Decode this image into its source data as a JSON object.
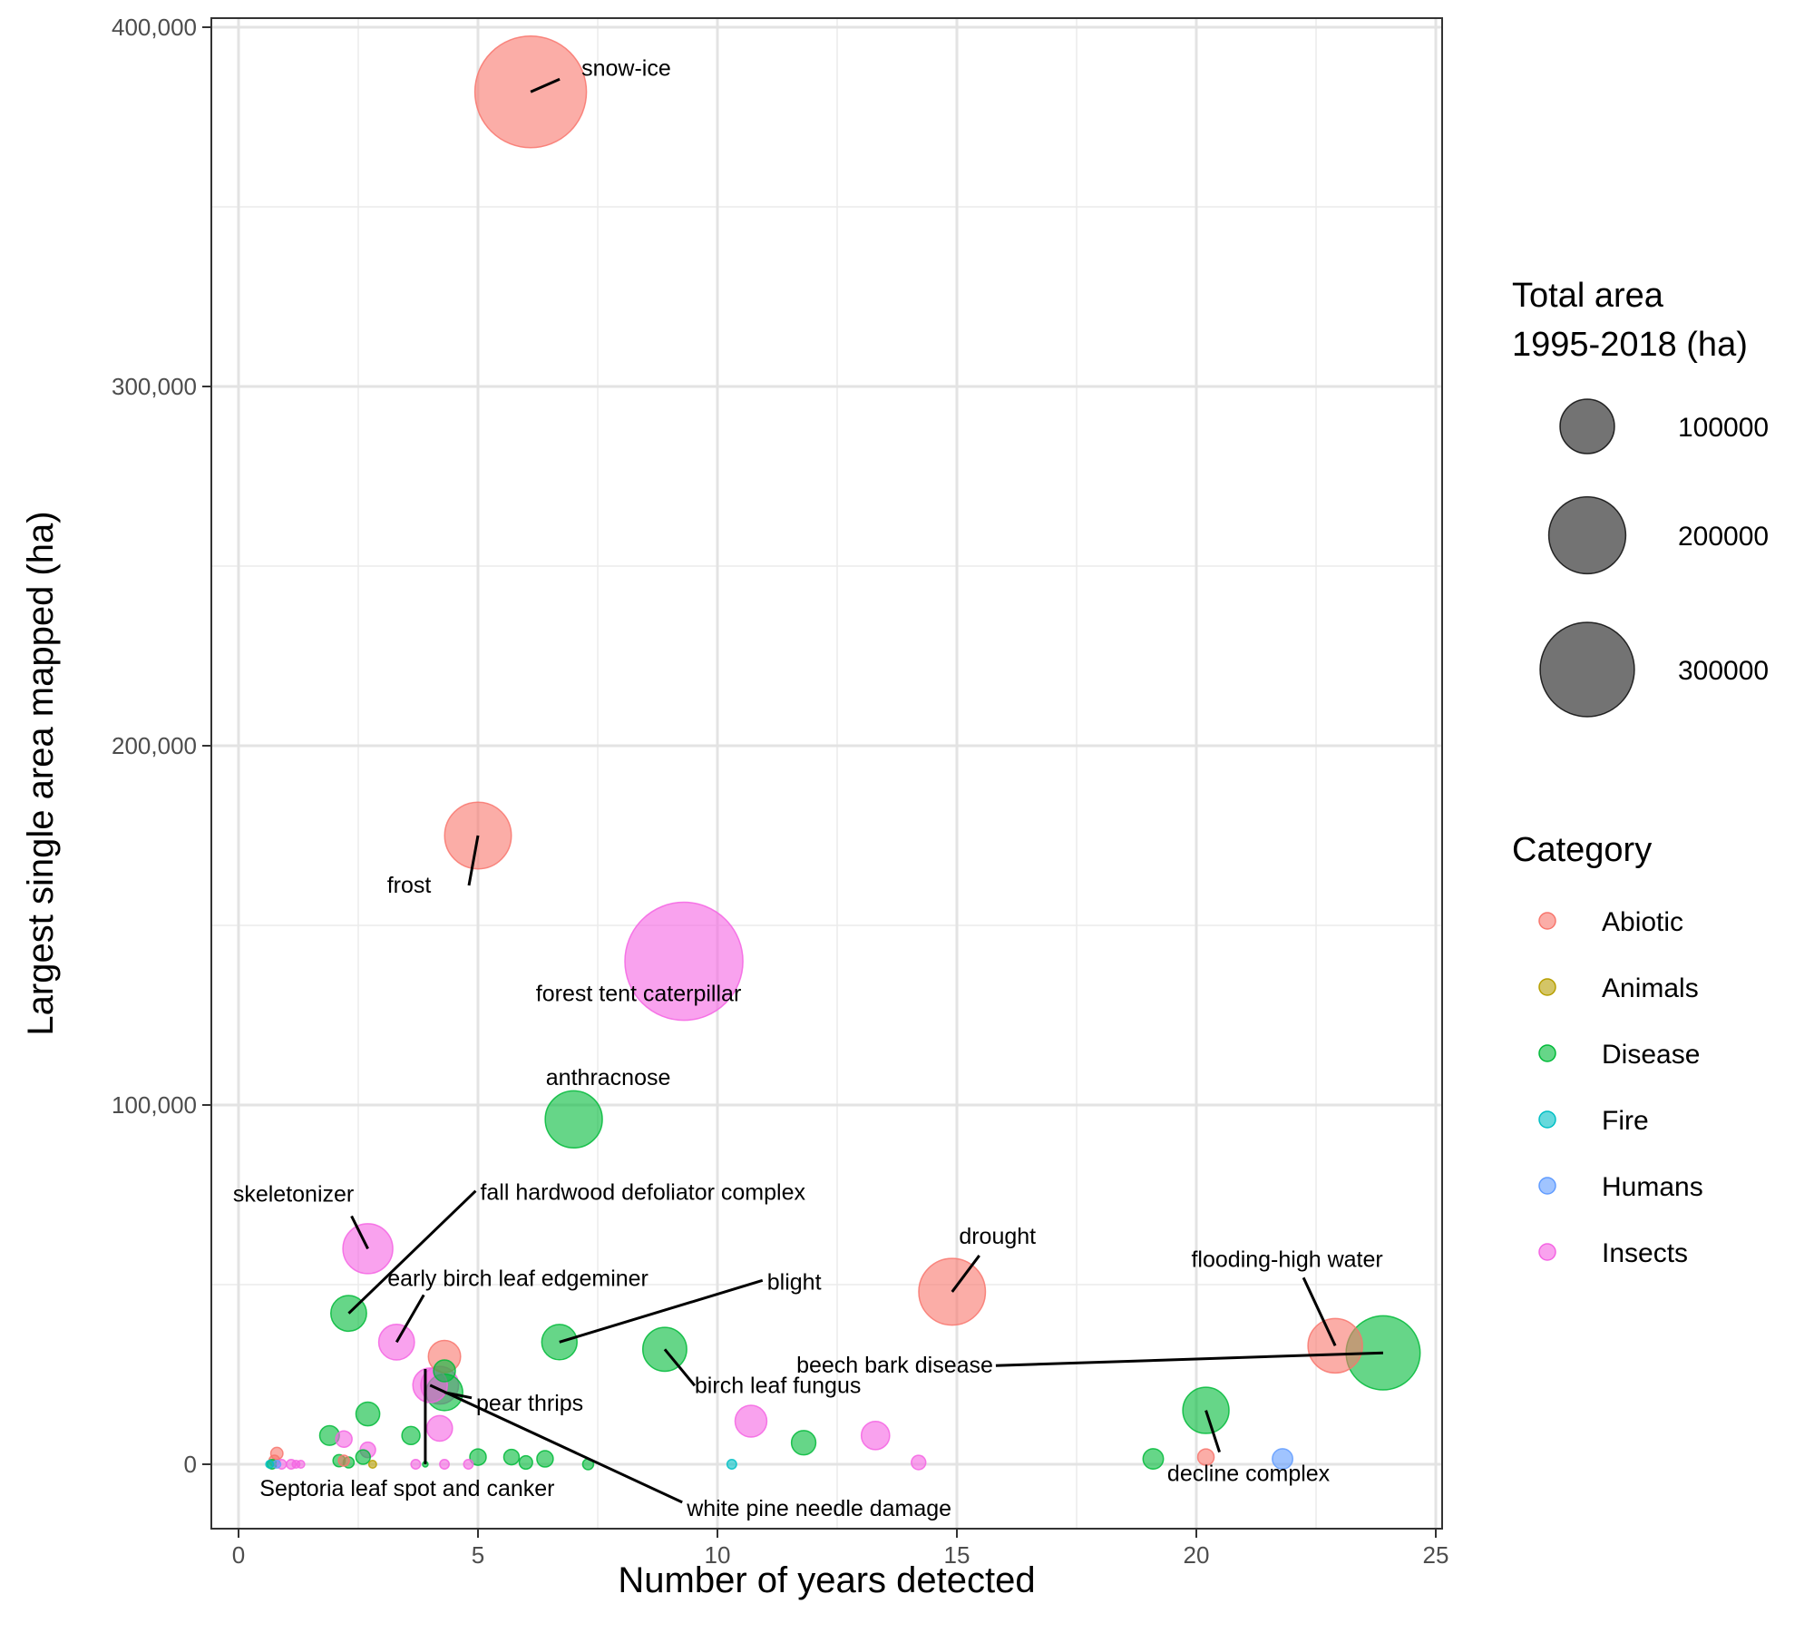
{
  "chart_data": {
    "type": "scatter",
    "title": "",
    "xlabel": "Number of years detected",
    "ylabel": "Largest single area mapped (ha)",
    "xlim": [
      -0.6,
      25.1
    ],
    "ylim": [
      -18000,
      400000
    ],
    "xticks": [
      0,
      5,
      10,
      15,
      20,
      25
    ],
    "xtick_labels": [
      "0",
      "5",
      "10",
      "15",
      "20",
      "25"
    ],
    "yticks": [
      0,
      100000,
      200000,
      300000,
      400000
    ],
    "ytick_labels": [
      "0",
      "100,000",
      "200,000",
      "300,000",
      "400,000"
    ],
    "grid": true,
    "colors": {
      "Abiotic": "#F8766D",
      "Animals": "#B79F00",
      "Disease": "#00BA38",
      "Fire": "#00BFC4",
      "Humans": "#619CFF",
      "Insects": "#F564E3"
    },
    "size_legend": {
      "title_line1": "Total area",
      "title_line2": "1995-2018 (ha)",
      "values": [
        100000,
        200000,
        300000
      ],
      "labels": [
        "100000",
        "200000",
        "300000"
      ]
    },
    "color_legend": {
      "title": "Category",
      "entries": [
        "Abiotic",
        "Animals",
        "Disease",
        "Fire",
        "Humans",
        "Insects"
      ]
    },
    "points": [
      {
        "name": "snow-ice",
        "category": "Abiotic",
        "x": 6.1,
        "y": 382000,
        "total": 420000
      },
      {
        "name": "frost",
        "category": "Abiotic",
        "x": 5.0,
        "y": 175000,
        "total": 150000
      },
      {
        "name": "forest tent caterpillar",
        "category": "Insects",
        "x": 9.3,
        "y": 140000,
        "total": 470000
      },
      {
        "name": "anthracnose",
        "category": "Disease",
        "x": 7.0,
        "y": 96000,
        "total": 110000
      },
      {
        "name": "skeletonizer",
        "category": "Insects",
        "x": 2.7,
        "y": 60000,
        "total": 84000
      },
      {
        "name": "fall hardwood defoliator complex",
        "category": "Disease",
        "x": 2.3,
        "y": 42000,
        "total": 43000
      },
      {
        "name": "early birch leaf edgeminer",
        "category": "Insects",
        "x": 3.3,
        "y": 34000,
        "total": 43000
      },
      {
        "name": "blight",
        "category": "Disease",
        "x": 6.7,
        "y": 34000,
        "total": 42000
      },
      {
        "name": "birch leaf fungus",
        "category": "Disease",
        "x": 8.9,
        "y": 32000,
        "total": 65000
      },
      {
        "name": "drought",
        "category": "Abiotic",
        "x": 14.9,
        "y": 48000,
        "total": 150000
      },
      {
        "name": "flooding-high water",
        "category": "Abiotic",
        "x": 22.9,
        "y": 33000,
        "total": 100000
      },
      {
        "name": "beech bark disease",
        "category": "Disease",
        "x": 23.9,
        "y": 31000,
        "total": 185000
      },
      {
        "name": "decline complex",
        "category": "Disease",
        "x": 20.2,
        "y": 15000,
        "total": 72000
      },
      {
        "name": "pear thrips",
        "category": "Disease",
        "x": 4.3,
        "y": 20000,
        "total": 45000
      },
      {
        "name": "Septoria leaf spot and canker",
        "category": "Disease",
        "x": 3.9,
        "y": 0,
        "total": 1000
      },
      {
        "name": "white pine needle damage",
        "category": "Insects",
        "x": 4.0,
        "y": 22000,
        "total": 40000
      },
      {
        "name": "",
        "category": "Insects",
        "x": 4.2,
        "y": 22000,
        "total": 48000
      },
      {
        "name": "",
        "category": "Abiotic",
        "x": 4.3,
        "y": 30000,
        "total": 35000
      },
      {
        "name": "",
        "category": "Disease",
        "x": 4.3,
        "y": 26000,
        "total": 16000
      },
      {
        "name": "",
        "category": "Insects",
        "x": 4.2,
        "y": 10000,
        "total": 22000
      },
      {
        "name": "",
        "category": "Insects",
        "x": 10.7,
        "y": 12000,
        "total": 34000
      },
      {
        "name": "",
        "category": "Insects",
        "x": 13.3,
        "y": 8000,
        "total": 27000
      },
      {
        "name": "",
        "category": "Insects",
        "x": 14.2,
        "y": 500,
        "total": 7000
      },
      {
        "name": "",
        "category": "Disease",
        "x": 11.8,
        "y": 6000,
        "total": 20000
      },
      {
        "name": "",
        "category": "Disease",
        "x": 2.7,
        "y": 14000,
        "total": 19000
      },
      {
        "name": "",
        "category": "Disease",
        "x": 1.9,
        "y": 8000,
        "total": 13000
      },
      {
        "name": "",
        "category": "Disease",
        "x": 3.6,
        "y": 8000,
        "total": 11000
      },
      {
        "name": "",
        "category": "Disease",
        "x": 19.1,
        "y": 1500,
        "total": 14000
      },
      {
        "name": "",
        "category": "Abiotic",
        "x": 20.2,
        "y": 2000,
        "total": 9000
      },
      {
        "name": "",
        "category": "Humans",
        "x": 21.8,
        "y": 1500,
        "total": 14000
      },
      {
        "name": "",
        "category": "Fire",
        "x": 10.3,
        "y": 0,
        "total": 3000
      },
      {
        "name": "",
        "category": "Disease",
        "x": 5.0,
        "y": 2000,
        "total": 9000
      },
      {
        "name": "",
        "category": "Disease",
        "x": 5.7,
        "y": 2000,
        "total": 8000
      },
      {
        "name": "",
        "category": "Disease",
        "x": 6.0,
        "y": 500,
        "total": 6000
      },
      {
        "name": "",
        "category": "Disease",
        "x": 6.4,
        "y": 1500,
        "total": 9000
      },
      {
        "name": "",
        "category": "Disease",
        "x": 7.3,
        "y": 0,
        "total": 4000
      },
      {
        "name": "",
        "category": "Insects",
        "x": 2.2,
        "y": 7000,
        "total": 9000
      },
      {
        "name": "",
        "category": "Insects",
        "x": 2.7,
        "y": 4000,
        "total": 8000
      },
      {
        "name": "",
        "category": "Disease",
        "x": 2.6,
        "y": 2000,
        "total": 7000
      },
      {
        "name": "",
        "category": "Disease",
        "x": 2.1,
        "y": 1000,
        "total": 5000
      },
      {
        "name": "",
        "category": "Disease",
        "x": 2.3,
        "y": 500,
        "total": 4000
      },
      {
        "name": "",
        "category": "Abiotic",
        "x": 2.2,
        "y": 1000,
        "total": 4000
      },
      {
        "name": "",
        "category": "Animals",
        "x": 2.8,
        "y": 0,
        "total": 2000
      },
      {
        "name": "",
        "category": "Insects",
        "x": 3.7,
        "y": 0,
        "total": 3000
      },
      {
        "name": "",
        "category": "Insects",
        "x": 4.3,
        "y": 0,
        "total": 3000
      },
      {
        "name": "",
        "category": "Insects",
        "x": 4.8,
        "y": 0,
        "total": 3000
      },
      {
        "name": "",
        "category": "Abiotic",
        "x": 0.8,
        "y": 3000,
        "total": 5000
      },
      {
        "name": "",
        "category": "Abiotic",
        "x": 0.75,
        "y": 1000,
        "total": 4000
      },
      {
        "name": "",
        "category": "Disease",
        "x": 0.7,
        "y": 0,
        "total": 3000
      },
      {
        "name": "",
        "category": "Insects",
        "x": 0.9,
        "y": 0,
        "total": 3000
      },
      {
        "name": "",
        "category": "Insects",
        "x": 1.1,
        "y": 0,
        "total": 3000
      },
      {
        "name": "",
        "category": "Insects",
        "x": 1.2,
        "y": 0,
        "total": 2000
      },
      {
        "name": "",
        "category": "Insects",
        "x": 1.3,
        "y": 0,
        "total": 2000
      },
      {
        "name": "",
        "category": "Humans",
        "x": 0.8,
        "y": 0,
        "total": 2000
      },
      {
        "name": "",
        "category": "Fire",
        "x": 0.65,
        "y": 0,
        "total": 2000
      }
    ]
  }
}
